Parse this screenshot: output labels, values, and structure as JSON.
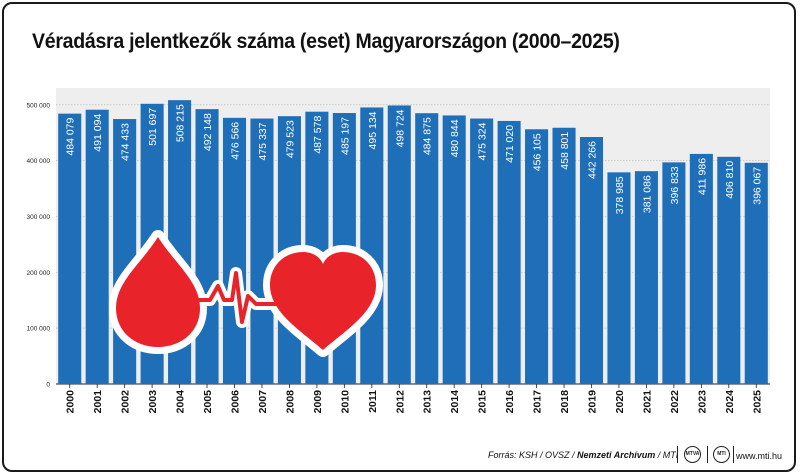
{
  "chart_data": {
    "type": "bar",
    "title": "Véradásra jelentkezők száma (eset) Magyarországon (2000–2025)",
    "categories": [
      "2000",
      "2001",
      "2002",
      "2003",
      "2004",
      "2005",
      "2006",
      "2007",
      "2008",
      "2009",
      "2010",
      "2011",
      "2012",
      "2013",
      "2014",
      "2015",
      "2016",
      "2017",
      "2018",
      "2019",
      "2020",
      "2021",
      "2022",
      "2023",
      "2024",
      "2025"
    ],
    "values": [
      484079,
      491094,
      474433,
      501697,
      508215,
      492148,
      476566,
      475337,
      479523,
      487578,
      485197,
      495134,
      498724,
      484875,
      480844,
      475324,
      471020,
      456105,
      458801,
      442266,
      378985,
      381086,
      396833,
      411986,
      406810,
      396067
    ],
    "value_labels": [
      "484 079",
      "491 094",
      "474 433",
      "501 697",
      "508 215",
      "492 148",
      "476 566",
      "475 337",
      "479 523",
      "487 578",
      "485 197",
      "495 134",
      "498 724",
      "484 875",
      "480 844",
      "475 324",
      "471 020",
      "456 105",
      "458 801",
      "442 266",
      "378 985",
      "381 086",
      "396 833",
      "411 986",
      "406 810",
      "396 067"
    ],
    "y_ticks": [
      0,
      100000,
      200000,
      300000,
      400000,
      500000
    ],
    "y_tick_labels": [
      "0",
      "100 000",
      "200 000",
      "300 000",
      "400 000",
      "500 000"
    ],
    "ylim": [
      0,
      530000
    ],
    "bar_color": "#1f6fb8",
    "grid": true
  },
  "footer": {
    "source_prefix": "Forrás: KSH / OVSZ / ",
    "archive": "Nemzeti Archívum",
    "agency": " / MTI",
    "logo1": "MTVA",
    "logo2": "MTI",
    "site": "www.mti.hu"
  },
  "illustration": {
    "icon_color": "#e8232a"
  }
}
